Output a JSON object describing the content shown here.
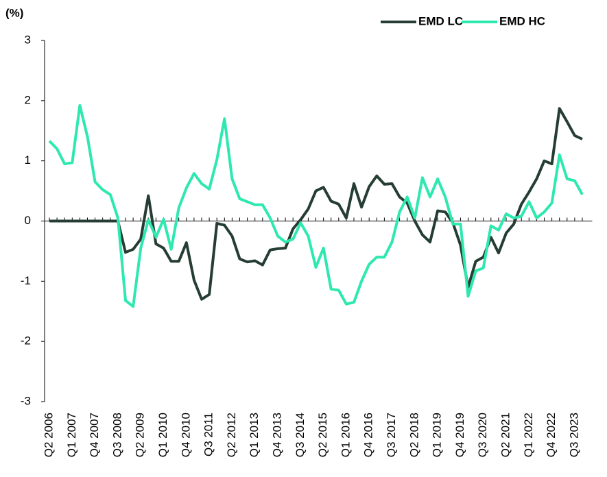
{
  "chart_data": {
    "type": "line",
    "y_label": "(%)",
    "categories": [
      "Q2 2006",
      null,
      null,
      "Q1 2007",
      null,
      null,
      "Q4 2007",
      null,
      null,
      "Q3 2008",
      null,
      null,
      "Q2 2009",
      null,
      null,
      "Q1 2010",
      null,
      null,
      "Q4 2010",
      null,
      null,
      "Q3 2011",
      null,
      null,
      "Q2 2012",
      null,
      null,
      "Q1 2013",
      null,
      null,
      "Q4 2013",
      null,
      null,
      "Q3 2014",
      null,
      null,
      "Q2 2015",
      null,
      null,
      "Q1 2016",
      null,
      null,
      "Q4 2016",
      null,
      null,
      "Q3 2017",
      null,
      null,
      "Q2 2018",
      null,
      null,
      "Q1 2019",
      null,
      null,
      "Q4 2019",
      null,
      null,
      "Q3 2020",
      null,
      null,
      "Q2 2021",
      null,
      null,
      "Q1 2022",
      null,
      null,
      "Q4 2022",
      null,
      null,
      "Q3 2023",
      null
    ],
    "series": [
      {
        "name": "EMD LC",
        "color": "#253d33",
        "values": [
          0,
          0,
          0,
          0,
          0,
          0,
          0,
          0,
          0,
          0,
          -0.52,
          -0.47,
          -0.3,
          0.42,
          -0.38,
          -0.45,
          -0.67,
          -0.67,
          -0.36,
          -0.98,
          -1.3,
          -1.22,
          -0.04,
          -0.07,
          -0.25,
          -0.63,
          -0.68,
          -0.66,
          -0.73,
          -0.48,
          -0.46,
          -0.45,
          -0.13,
          0.02,
          0.2,
          0.5,
          0.56,
          0.33,
          0.28,
          0.05,
          0.62,
          0.23,
          0.57,
          0.75,
          0.61,
          0.62,
          0.4,
          0.3,
          0.0,
          -0.23,
          -0.35,
          0.17,
          0.15,
          -0.03,
          -0.4,
          -1.1,
          -0.67,
          -0.6,
          -0.27,
          -0.53,
          -0.2,
          -0.05,
          0.28,
          0.48,
          0.7,
          1.0,
          0.95,
          1.87,
          1.65,
          1.42,
          1.36
        ]
      },
      {
        "name": "EMD HC",
        "color": "#2ee8b0",
        "values": [
          1.33,
          1.2,
          0.95,
          0.97,
          1.92,
          1.4,
          0.65,
          0.52,
          0.44,
          0.05,
          -1.32,
          -1.42,
          -0.45,
          0.02,
          -0.27,
          0.03,
          -0.47,
          0.22,
          0.55,
          0.79,
          0.62,
          0.53,
          1.02,
          1.7,
          0.7,
          0.37,
          0.32,
          0.27,
          0.27,
          0.05,
          -0.25,
          -0.35,
          -0.3,
          -0.03,
          -0.25,
          -0.77,
          -0.45,
          -1.13,
          -1.15,
          -1.38,
          -1.35,
          -1.0,
          -0.72,
          -0.6,
          -0.6,
          -0.35,
          0.15,
          0.4,
          0.05,
          0.72,
          0.4,
          0.7,
          0.4,
          -0.05,
          -0.05,
          -1.25,
          -0.83,
          -0.78,
          -0.08,
          -0.15,
          0.12,
          0.05,
          0.08,
          0.32,
          0.05,
          0.15,
          0.3,
          1.1,
          0.7,
          0.67,
          0.44
        ]
      }
    ],
    "ylim": [
      -3,
      3
    ],
    "yticks": [
      -3,
      -2,
      -1,
      0,
      1,
      2,
      3
    ],
    "legend": "top-right"
  }
}
